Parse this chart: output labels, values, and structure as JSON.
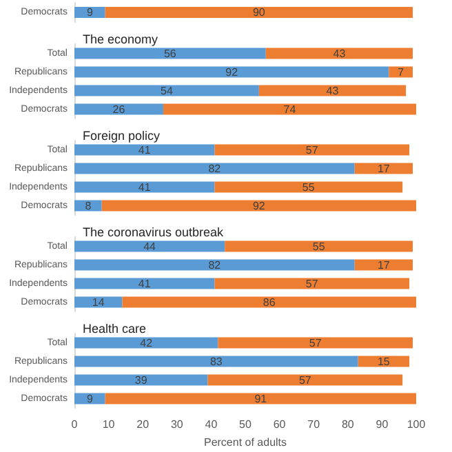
{
  "chart_data": [
    {
      "type": "bar",
      "orientation": "horizontal",
      "stacked": true,
      "data_labels": true,
      "categories": [
        "Democrats"
      ],
      "xlim": [
        0,
        100
      ],
      "xticks": [
        0,
        10,
        20,
        30,
        40,
        50,
        60,
        70,
        80,
        90,
        100
      ],
      "tick_labels": "y",
      "series": [
        {
          "color": "#5b9bd5",
          "values": [
            9
          ]
        },
        {
          "color": "#ed7d31",
          "values": [
            90
          ]
        }
      ]
    },
    {
      "type": "bar",
      "orientation": "horizontal",
      "stacked": true,
      "data_labels": true,
      "title": "The economy",
      "categories": [
        "Total",
        "Republicans",
        "Independents",
        "Democrats"
      ],
      "xlim": [
        0,
        100
      ],
      "xticks": [
        0,
        10,
        20,
        30,
        40,
        50,
        60,
        70,
        80,
        90,
        100
      ],
      "tick_labels": "y",
      "series": [
        {
          "color": "#5b9bd5",
          "values": [
            56,
            92,
            54,
            26
          ]
        },
        {
          "color": "#ed7d31",
          "values": [
            43,
            7,
            43,
            74
          ]
        }
      ]
    },
    {
      "type": "bar",
      "orientation": "horizontal",
      "stacked": true,
      "data_labels": true,
      "title": "Foreign policy",
      "categories": [
        "Total",
        "Republicans",
        "Independents",
        "Democrats"
      ],
      "xlim": [
        0,
        100
      ],
      "xticks": [
        0,
        10,
        20,
        30,
        40,
        50,
        60,
        70,
        80,
        90,
        100
      ],
      "tick_labels": "y",
      "series": [
        {
          "color": "#5b9bd5",
          "values": [
            41,
            82,
            41,
            8
          ]
        },
        {
          "color": "#ed7d31",
          "values": [
            57,
            17,
            55,
            92
          ]
        }
      ]
    },
    {
      "type": "bar",
      "orientation": "horizontal",
      "stacked": true,
      "data_labels": true,
      "title": "The coronavirus outbreak",
      "categories": [
        "Total",
        "Republicans",
        "Independents",
        "Democrats"
      ],
      "xlim": [
        0,
        100
      ],
      "xticks": [
        0,
        10,
        20,
        30,
        40,
        50,
        60,
        70,
        80,
        90,
        100
      ],
      "tick_labels": "y",
      "series": [
        {
          "color": "#5b9bd5",
          "values": [
            44,
            82,
            41,
            14
          ]
        },
        {
          "color": "#ed7d31",
          "values": [
            55,
            17,
            57,
            86
          ]
        }
      ]
    },
    {
      "type": "bar",
      "orientation": "horizontal",
      "stacked": true,
      "data_labels": true,
      "title": "Health care",
      "xlabel": "Percent of adults",
      "categories": [
        "Total",
        "Republicans",
        "Independents",
        "Democrats"
      ],
      "xlim": [
        0,
        100
      ],
      "xticks": [
        0,
        10,
        20,
        30,
        40,
        50,
        60,
        70,
        80,
        90,
        100
      ],
      "series": [
        {
          "color": "#5b9bd5",
          "values": [
            42,
            83,
            39,
            9
          ]
        },
        {
          "color": "#ed7d31",
          "values": [
            57,
            15,
            57,
            91
          ]
        }
      ]
    }
  ]
}
